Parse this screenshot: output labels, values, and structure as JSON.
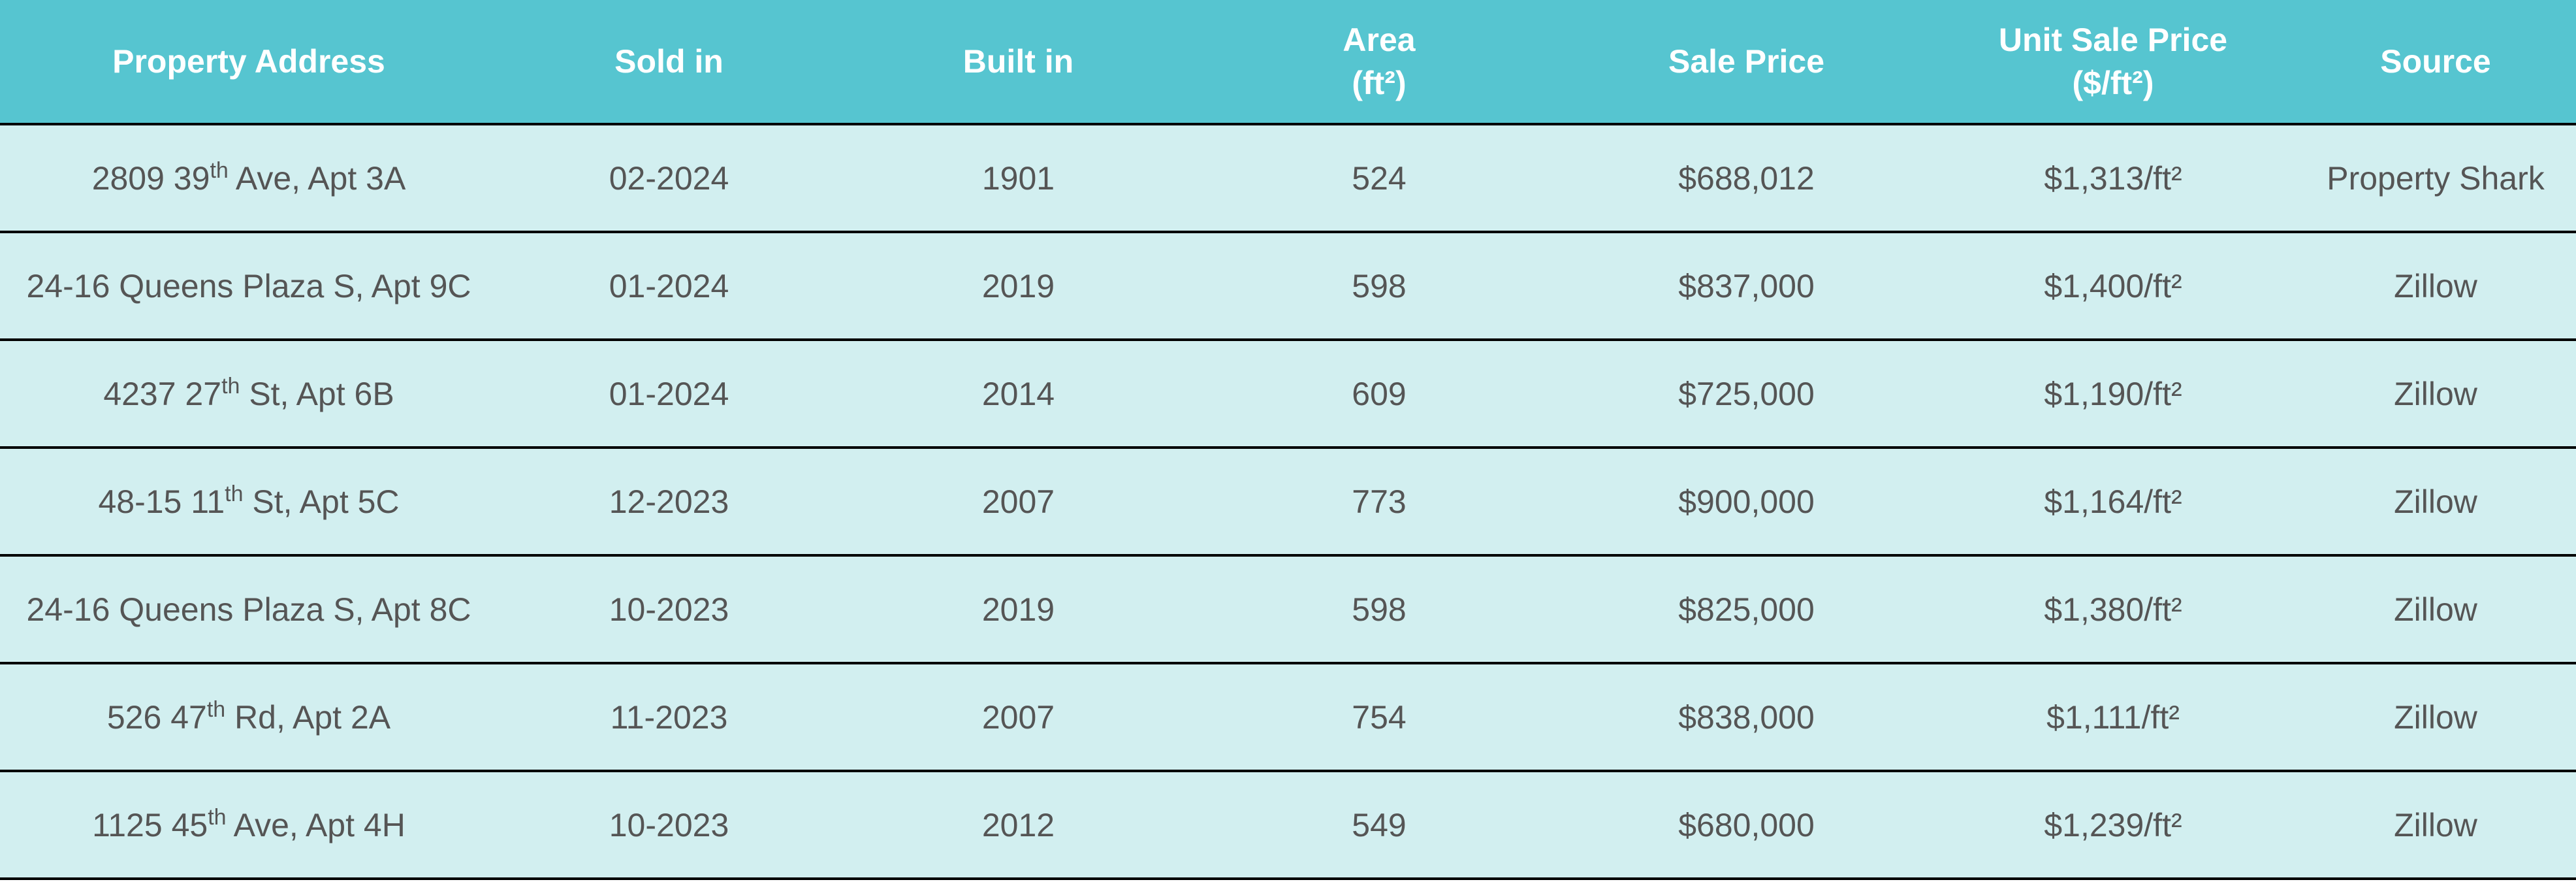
{
  "headers": {
    "address": "Property Address",
    "sold": "Sold in",
    "built": "Built in",
    "area_line1": "Area",
    "area_line2": "(ft²)",
    "sale_price": "Sale Price",
    "unit_line1": "Unit Sale Price",
    "unit_line2": "($/ft²)",
    "source": "Source"
  },
  "rows": [
    {
      "addr_num": "2809 39",
      "addr_sup": "th",
      "addr_rest": " Ave, Apt 3A",
      "sold": "02-2024",
      "built": "1901",
      "area": "524",
      "price": "$688,012",
      "unit": "$1,313/ft²",
      "source": "Property Shark"
    },
    {
      "addr_num": "24-16 Queens Plaza S, Apt 9C",
      "addr_sup": "",
      "addr_rest": "",
      "sold": "01-2024",
      "built": "2019",
      "area": "598",
      "price": "$837,000",
      "unit": "$1,400/ft²",
      "source": "Zillow"
    },
    {
      "addr_num": "4237 27",
      "addr_sup": "th",
      "addr_rest": " St, Apt 6B",
      "sold": "01-2024",
      "built": "2014",
      "area": "609",
      "price": "$725,000",
      "unit": "$1,190/ft²",
      "source": "Zillow"
    },
    {
      "addr_num": "48-15 11",
      "addr_sup": "th",
      "addr_rest": " St, Apt 5C",
      "sold": "12-2023",
      "built": "2007",
      "area": "773",
      "price": "$900,000",
      "unit": "$1,164/ft²",
      "source": "Zillow"
    },
    {
      "addr_num": "24-16 Queens Plaza S, Apt 8C",
      "addr_sup": "",
      "addr_rest": "",
      "sold": "10-2023",
      "built": "2019",
      "area": "598",
      "price": "$825,000",
      "unit": "$1,380/ft²",
      "source": "Zillow"
    },
    {
      "addr_num": "526 47",
      "addr_sup": "th",
      "addr_rest": " Rd, Apt 2A",
      "sold": "11-2023",
      "built": "2007",
      "area": "754",
      "price": "$838,000",
      "unit": "$1,111/ft²",
      "source": "Zillow"
    },
    {
      "addr_num": "1125 45",
      "addr_sup": "th",
      "addr_rest": " Ave, Apt 4H",
      "sold": "10-2023",
      "built": "2012",
      "area": "549",
      "price": "$680,000",
      "unit": "$1,239/ft²",
      "source": "Zillow"
    }
  ]
}
